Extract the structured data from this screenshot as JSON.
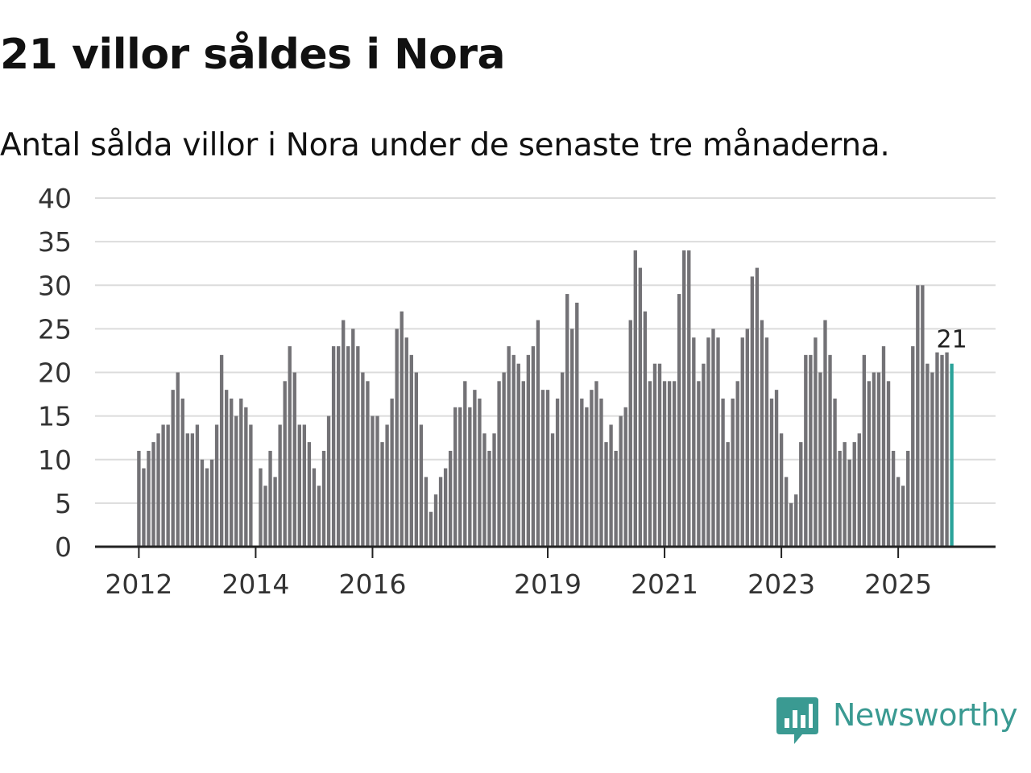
{
  "header": {
    "title": "21 villor såldes i Nora",
    "subtitle": "Antal sålda villor i Nora under de senaste tre månaderna."
  },
  "brand": {
    "name": "Newsworthy",
    "logo_icon": "newsworthy-logo-icon",
    "color": "#3a9a92"
  },
  "colors": {
    "bar": "#737276",
    "highlight": "#2aa39a",
    "grid": "#dcdcdc",
    "axis": "#222222",
    "text": "#333333"
  },
  "chart_data": {
    "type": "bar",
    "title": "21 villor såldes i Nora",
    "subtitle": "Antal sålda villor i Nora under de senaste tre månaderna.",
    "xlabel": "",
    "ylabel": "",
    "ylim": [
      0,
      40
    ],
    "yticks": [
      0,
      5,
      10,
      15,
      20,
      25,
      30,
      35,
      40
    ],
    "xticks": [
      {
        "label": "2012",
        "index": 0
      },
      {
        "label": "2014",
        "index": 24
      },
      {
        "label": "2016",
        "index": 48
      },
      {
        "label": "2019",
        "index": 84
      },
      {
        "label": "2021",
        "index": 108
      },
      {
        "label": "2023",
        "index": 132
      },
      {
        "label": "2025",
        "index": 156
      }
    ],
    "x_range_months": [
      -9,
      176
    ],
    "start": "2012-01",
    "values": [
      11,
      9,
      11,
      12,
      13,
      14,
      14,
      18,
      20,
      17,
      13,
      13,
      14,
      10,
      9,
      10,
      14,
      22,
      18,
      17,
      15,
      17,
      16,
      14,
      0,
      9,
      7,
      11,
      8,
      14,
      19,
      23,
      20,
      14,
      14,
      12,
      9,
      7,
      11,
      15,
      23,
      23,
      26,
      23,
      25,
      23,
      20,
      19,
      15,
      15,
      12,
      14,
      17,
      25,
      27,
      24,
      22,
      20,
      14,
      8,
      4,
      6,
      8,
      9,
      11,
      16,
      16,
      19,
      16,
      18,
      17,
      13,
      11,
      13,
      19,
      20,
      23,
      22,
      21,
      19,
      22,
      23,
      26,
      18,
      18,
      13,
      17,
      20,
      29,
      25,
      28,
      17,
      16,
      18,
      19,
      17,
      12,
      14,
      11,
      15,
      16,
      26,
      34,
      32,
      27,
      19,
      21,
      21,
      19,
      19,
      19,
      29,
      34,
      34,
      24,
      19,
      21,
      24,
      25,
      24,
      17,
      12,
      17,
      19,
      24,
      25,
      31,
      32,
      26,
      24,
      17,
      18,
      13,
      8,
      5,
      6,
      12,
      22,
      22,
      24,
      20,
      26,
      22,
      17,
      11,
      12,
      10,
      12,
      13,
      22,
      19,
      20,
      20,
      23,
      19,
      11,
      8,
      7,
      11,
      23,
      30,
      30,
      21,
      20,
      22.3,
      22,
      22.3,
      21
    ],
    "highlight_index": 167,
    "annotation": "21"
  }
}
